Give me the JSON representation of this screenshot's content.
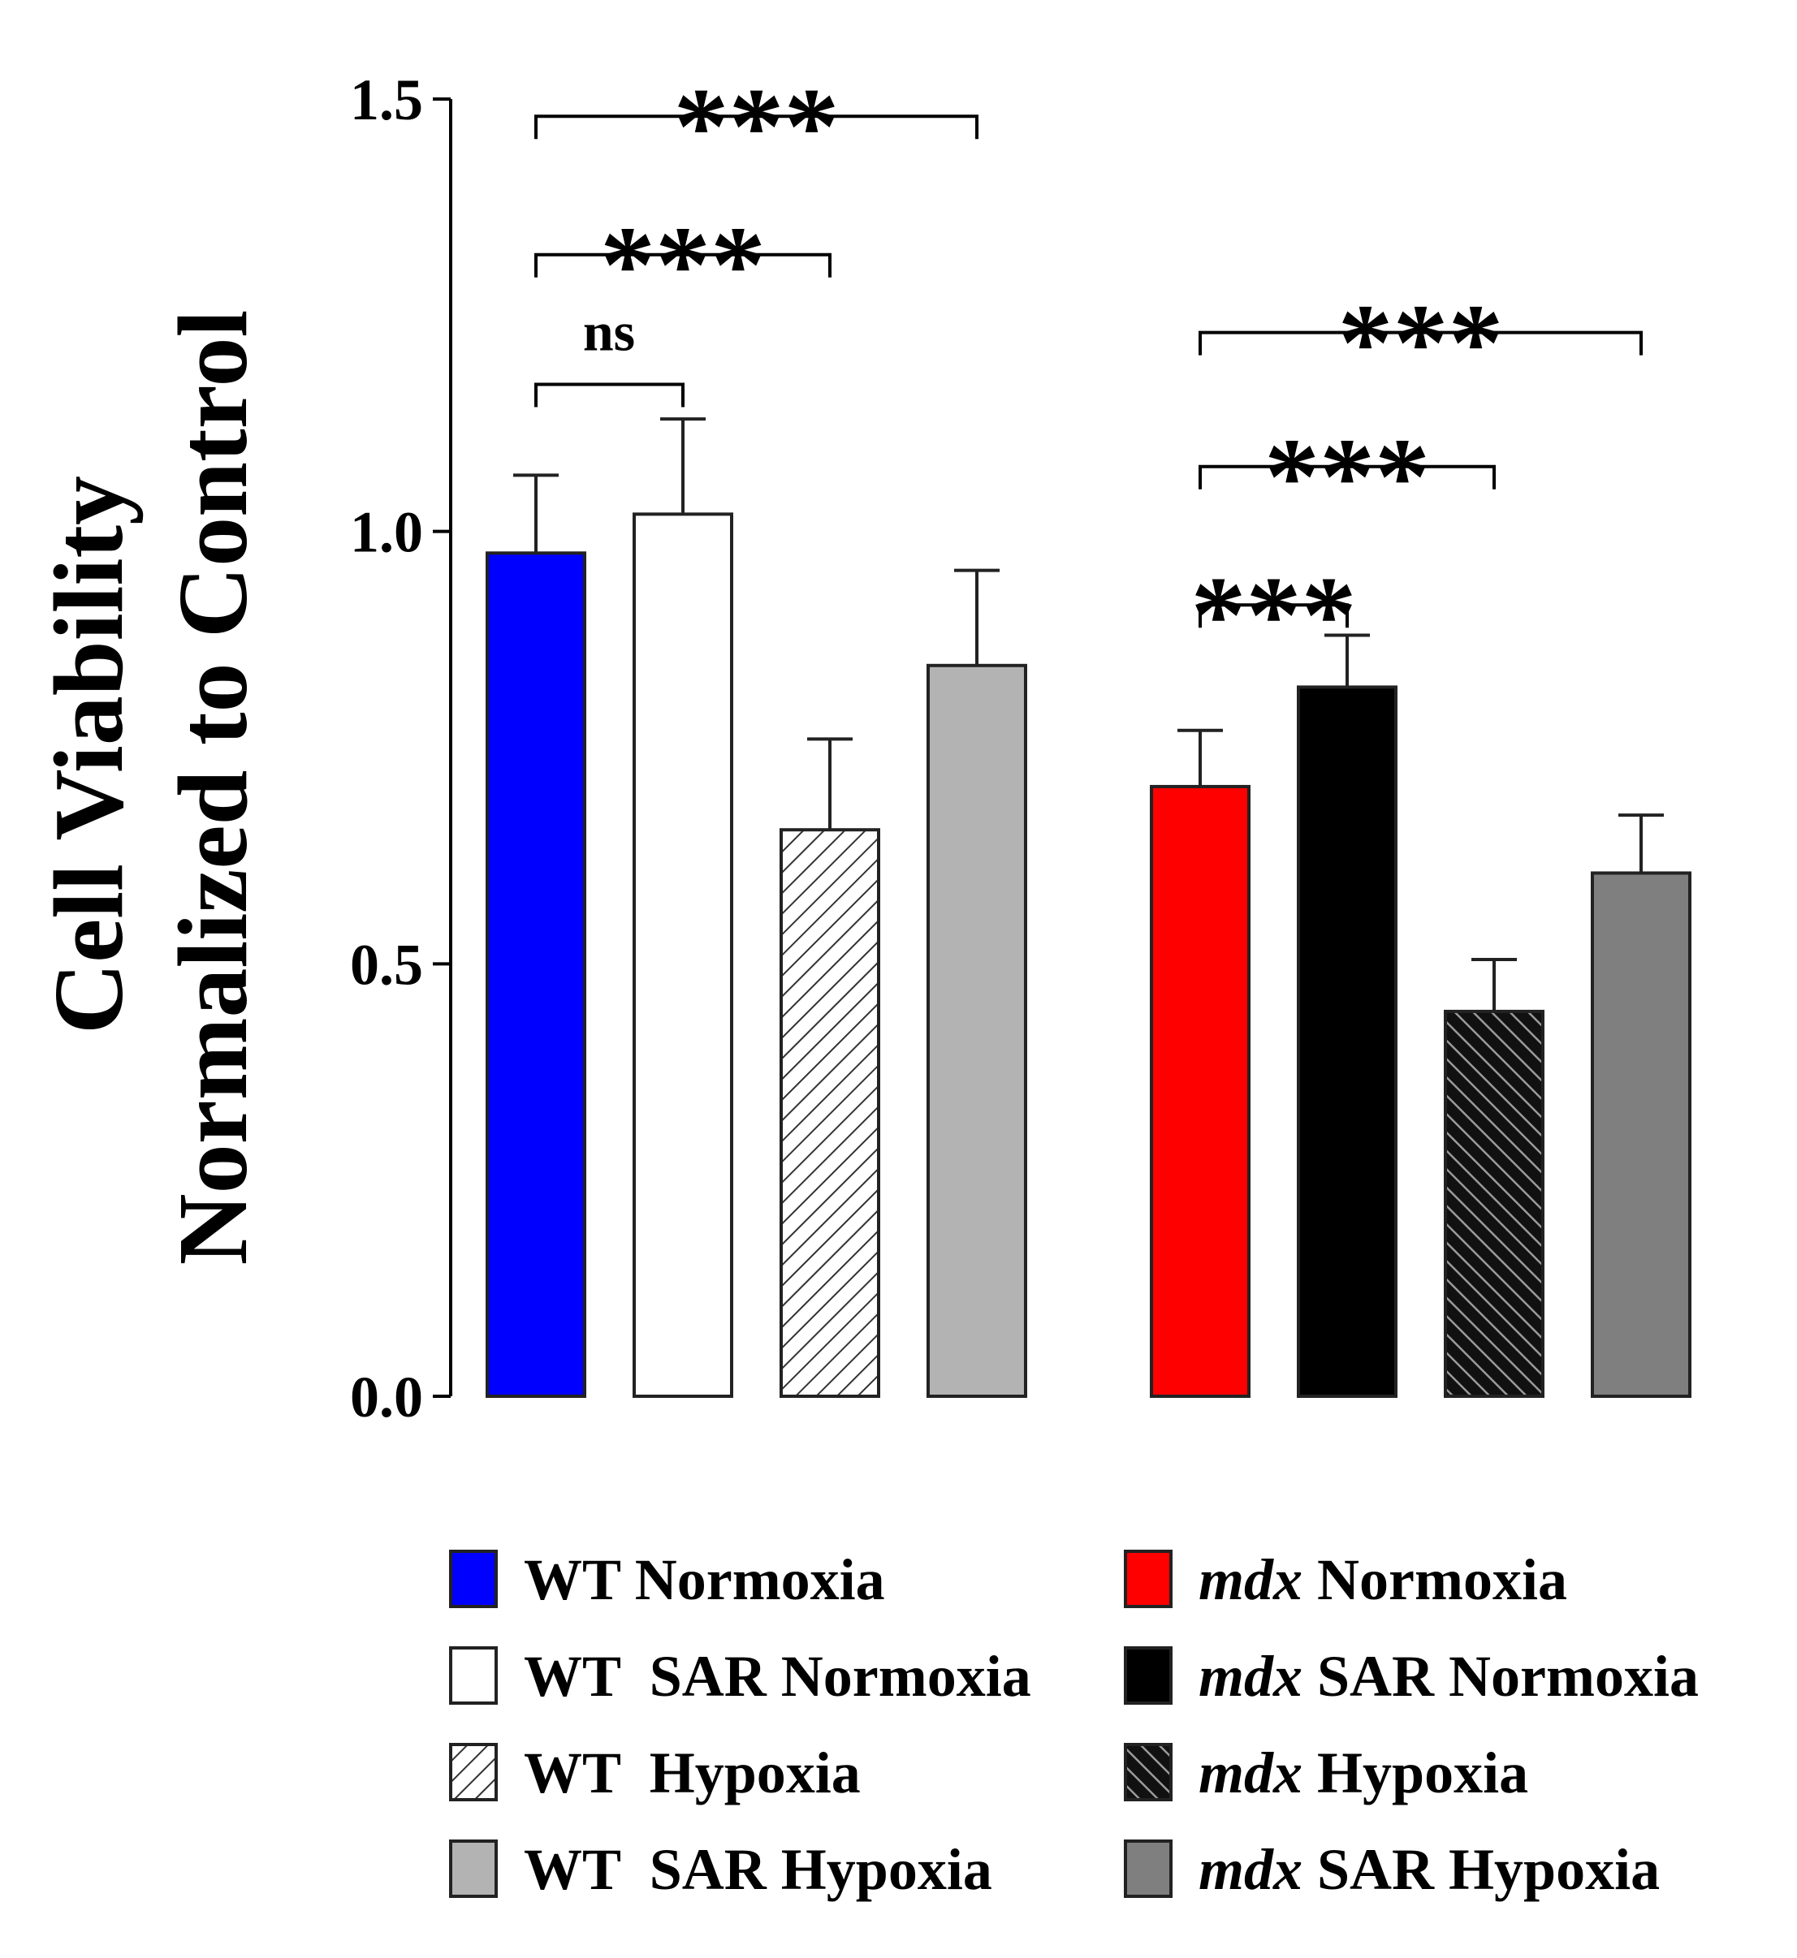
{
  "chart_data": {
    "type": "bar",
    "title": "",
    "xlabel": "",
    "ylabel": [
      "Cell Viability",
      "Normalized to Control"
    ],
    "ylim": [
      0,
      1.5
    ],
    "yticks": [
      {
        "value": 0.0,
        "label": "0.0"
      },
      {
        "value": 0.5,
        "label": "0.5"
      },
      {
        "value": 1.0,
        "label": "1.0"
      },
      {
        "value": 1.5,
        "label": "1.5"
      }
    ],
    "bars": [
      {
        "name": "WT Normoxia",
        "value": 0.975,
        "error": 0.09,
        "fill": "#0000ff",
        "pattern": "solid"
      },
      {
        "name": "WT SAR Normoxia",
        "value": 1.02,
        "error": 0.11,
        "fill": "#ffffff",
        "pattern": "solid"
      },
      {
        "name": "WT Hypoxia",
        "value": 0.655,
        "error": 0.105,
        "fill": "#ffffff",
        "pattern": "hatch-light"
      },
      {
        "name": "WT SAR Hypoxia",
        "value": 0.845,
        "error": 0.11,
        "fill": "#b3b3b3",
        "pattern": "solid"
      },
      {
        "name": "mdx Normoxia",
        "value": 0.705,
        "error": 0.065,
        "fill": "#ff0000",
        "pattern": "solid"
      },
      {
        "name": "mdx SAR Normoxia",
        "value": 0.82,
        "error": 0.06,
        "fill": "#000000",
        "pattern": "solid"
      },
      {
        "name": "mdx Hypoxia",
        "value": 0.445,
        "error": 0.06,
        "fill": "#555555",
        "pattern": "hatch-dark"
      },
      {
        "name": "mdx SAR Hypoxia",
        "value": 0.605,
        "error": 0.067,
        "fill": "#7f7f7f",
        "pattern": "solid"
      }
    ],
    "significance": [
      {
        "from": 0,
        "to": 3,
        "level": 1.48,
        "label": "***"
      },
      {
        "from": 0,
        "to": 2,
        "level": 1.32,
        "label": "***"
      },
      {
        "from": 0,
        "to": 1,
        "level": 1.17,
        "label": "ns"
      },
      {
        "from": 4,
        "to": 7,
        "level": 1.23,
        "label": "***"
      },
      {
        "from": 4,
        "to": 6,
        "level": 1.075,
        "label": "***"
      },
      {
        "from": 4,
        "to": 5,
        "level": 0.915,
        "label": "***"
      }
    ],
    "legend": [
      {
        "prefix": "WT",
        "italic": false,
        "text": " Normoxia",
        "bar": 0
      },
      {
        "prefix": "mdx",
        "italic": true,
        "text": " Normoxia",
        "bar": 4
      },
      {
        "prefix": "WT",
        "italic": false,
        "text": "  SAR Normoxia",
        "bar": 1
      },
      {
        "prefix": "mdx",
        "italic": true,
        "text": " SAR Normoxia",
        "bar": 5
      },
      {
        "prefix": "WT",
        "italic": false,
        "text": "  Hypoxia",
        "bar": 2
      },
      {
        "prefix": "mdx",
        "italic": true,
        "text": " Hypoxia",
        "bar": 6
      },
      {
        "prefix": "WT",
        "italic": false,
        "text": "  SAR Hypoxia",
        "bar": 3
      },
      {
        "prefix": "mdx",
        "italic": true,
        "text": " SAR Hypoxia",
        "bar": 7
      }
    ],
    "legend_position": "bottom"
  }
}
